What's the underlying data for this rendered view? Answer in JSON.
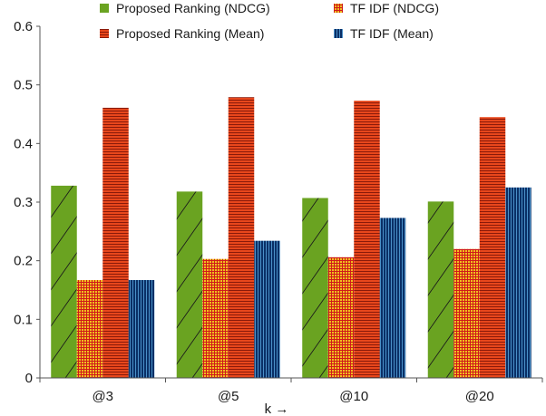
{
  "chart_data": {
    "type": "bar",
    "title": "",
    "xlabel": "k →",
    "ylabel": "",
    "ylim": [
      0,
      0.6
    ],
    "yticks": [
      "0",
      "0.1",
      "0.2",
      "0.3",
      "0.4",
      "0.5",
      "0.6"
    ],
    "categories": [
      "@3",
      "@5",
      "@10",
      "@20"
    ],
    "grid": false,
    "legend_position": "top",
    "series": [
      {
        "name": "Proposed Ranking (NDCG)",
        "values": [
          0.328,
          0.318,
          0.307,
          0.301
        ],
        "color": "#6aa321",
        "pattern": "diagonal-hatch"
      },
      {
        "name": "TF IDF (NDCG)",
        "values": [
          0.167,
          0.203,
          0.206,
          0.22
        ],
        "color": "#e8a43a",
        "pattern": "crosshatch"
      },
      {
        "name": "Proposed Ranking (Mean)",
        "values": [
          0.461,
          0.479,
          0.473,
          0.445
        ],
        "color": "#e2431a",
        "pattern": "horizontal-stripes"
      },
      {
        "name": "TF IDF (Mean)",
        "values": [
          0.167,
          0.234,
          0.273,
          0.325
        ],
        "color": "#0a3a73",
        "pattern": "vertical-stripes"
      }
    ]
  }
}
